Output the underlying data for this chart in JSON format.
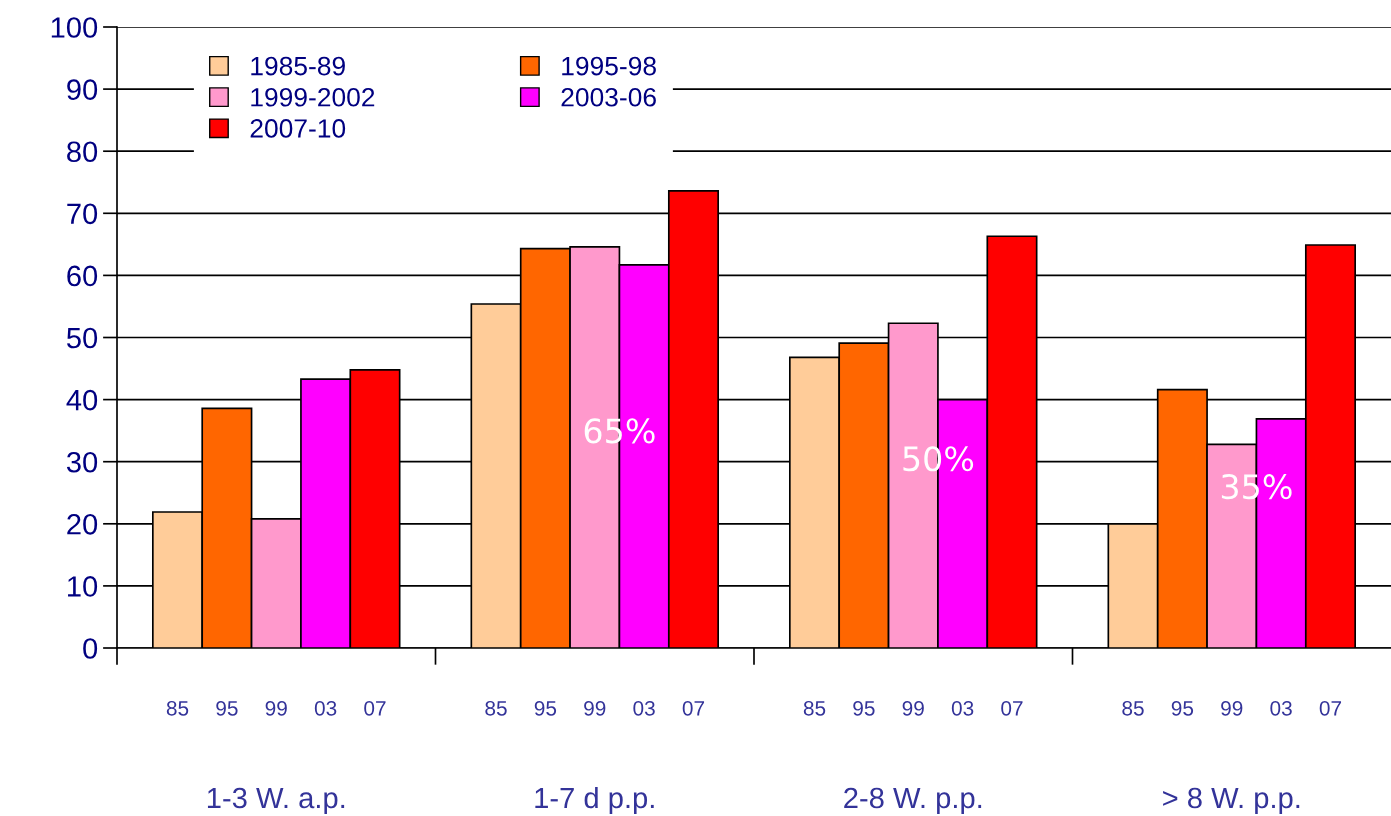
{
  "chart_data": {
    "type": "bar",
    "categories": [
      "1-3 W. a.p.",
      "1-7 d p.p.",
      "2-8 W. p.p.",
      "> 8 W. p.p."
    ],
    "series": [
      {
        "name": "1985-89",
        "color": "#ffcc99",
        "values": [
          21.9,
          55.4,
          46.8,
          20
        ]
      },
      {
        "name": "1995-98",
        "color": "#ff6600",
        "values": [
          38.6,
          64.3,
          49.1,
          41.6
        ]
      },
      {
        "name": "1999-2002",
        "color": "#ff99cc",
        "values": [
          20.8,
          64.6,
          52.3,
          32.8
        ]
      },
      {
        "name": "2003-06",
        "color": "#ff00ff",
        "values": [
          43.3,
          61.7,
          40,
          36.9
        ]
      },
      {
        "name": "2007-10",
        "color": "#ff0000",
        "values": [
          44.8,
          73.6,
          66.3,
          64.9
        ]
      }
    ],
    "annotations": [
      "85",
      "95",
      "99",
      "03",
      "07",
      "85",
      "95",
      "99",
      "03",
      "07",
      "85",
      "95",
      "99",
      "03",
      "07",
      "85",
      "95",
      "99",
      "03",
      "07",
      "65%",
      "50%",
      "35%"
    ],
    "ylim": [
      0,
      100
    ],
    "yticks": [
      0,
      10,
      20,
      30,
      40,
      50,
      60,
      70,
      80,
      90,
      100
    ],
    "grid": "y",
    "legend": "top left"
  }
}
